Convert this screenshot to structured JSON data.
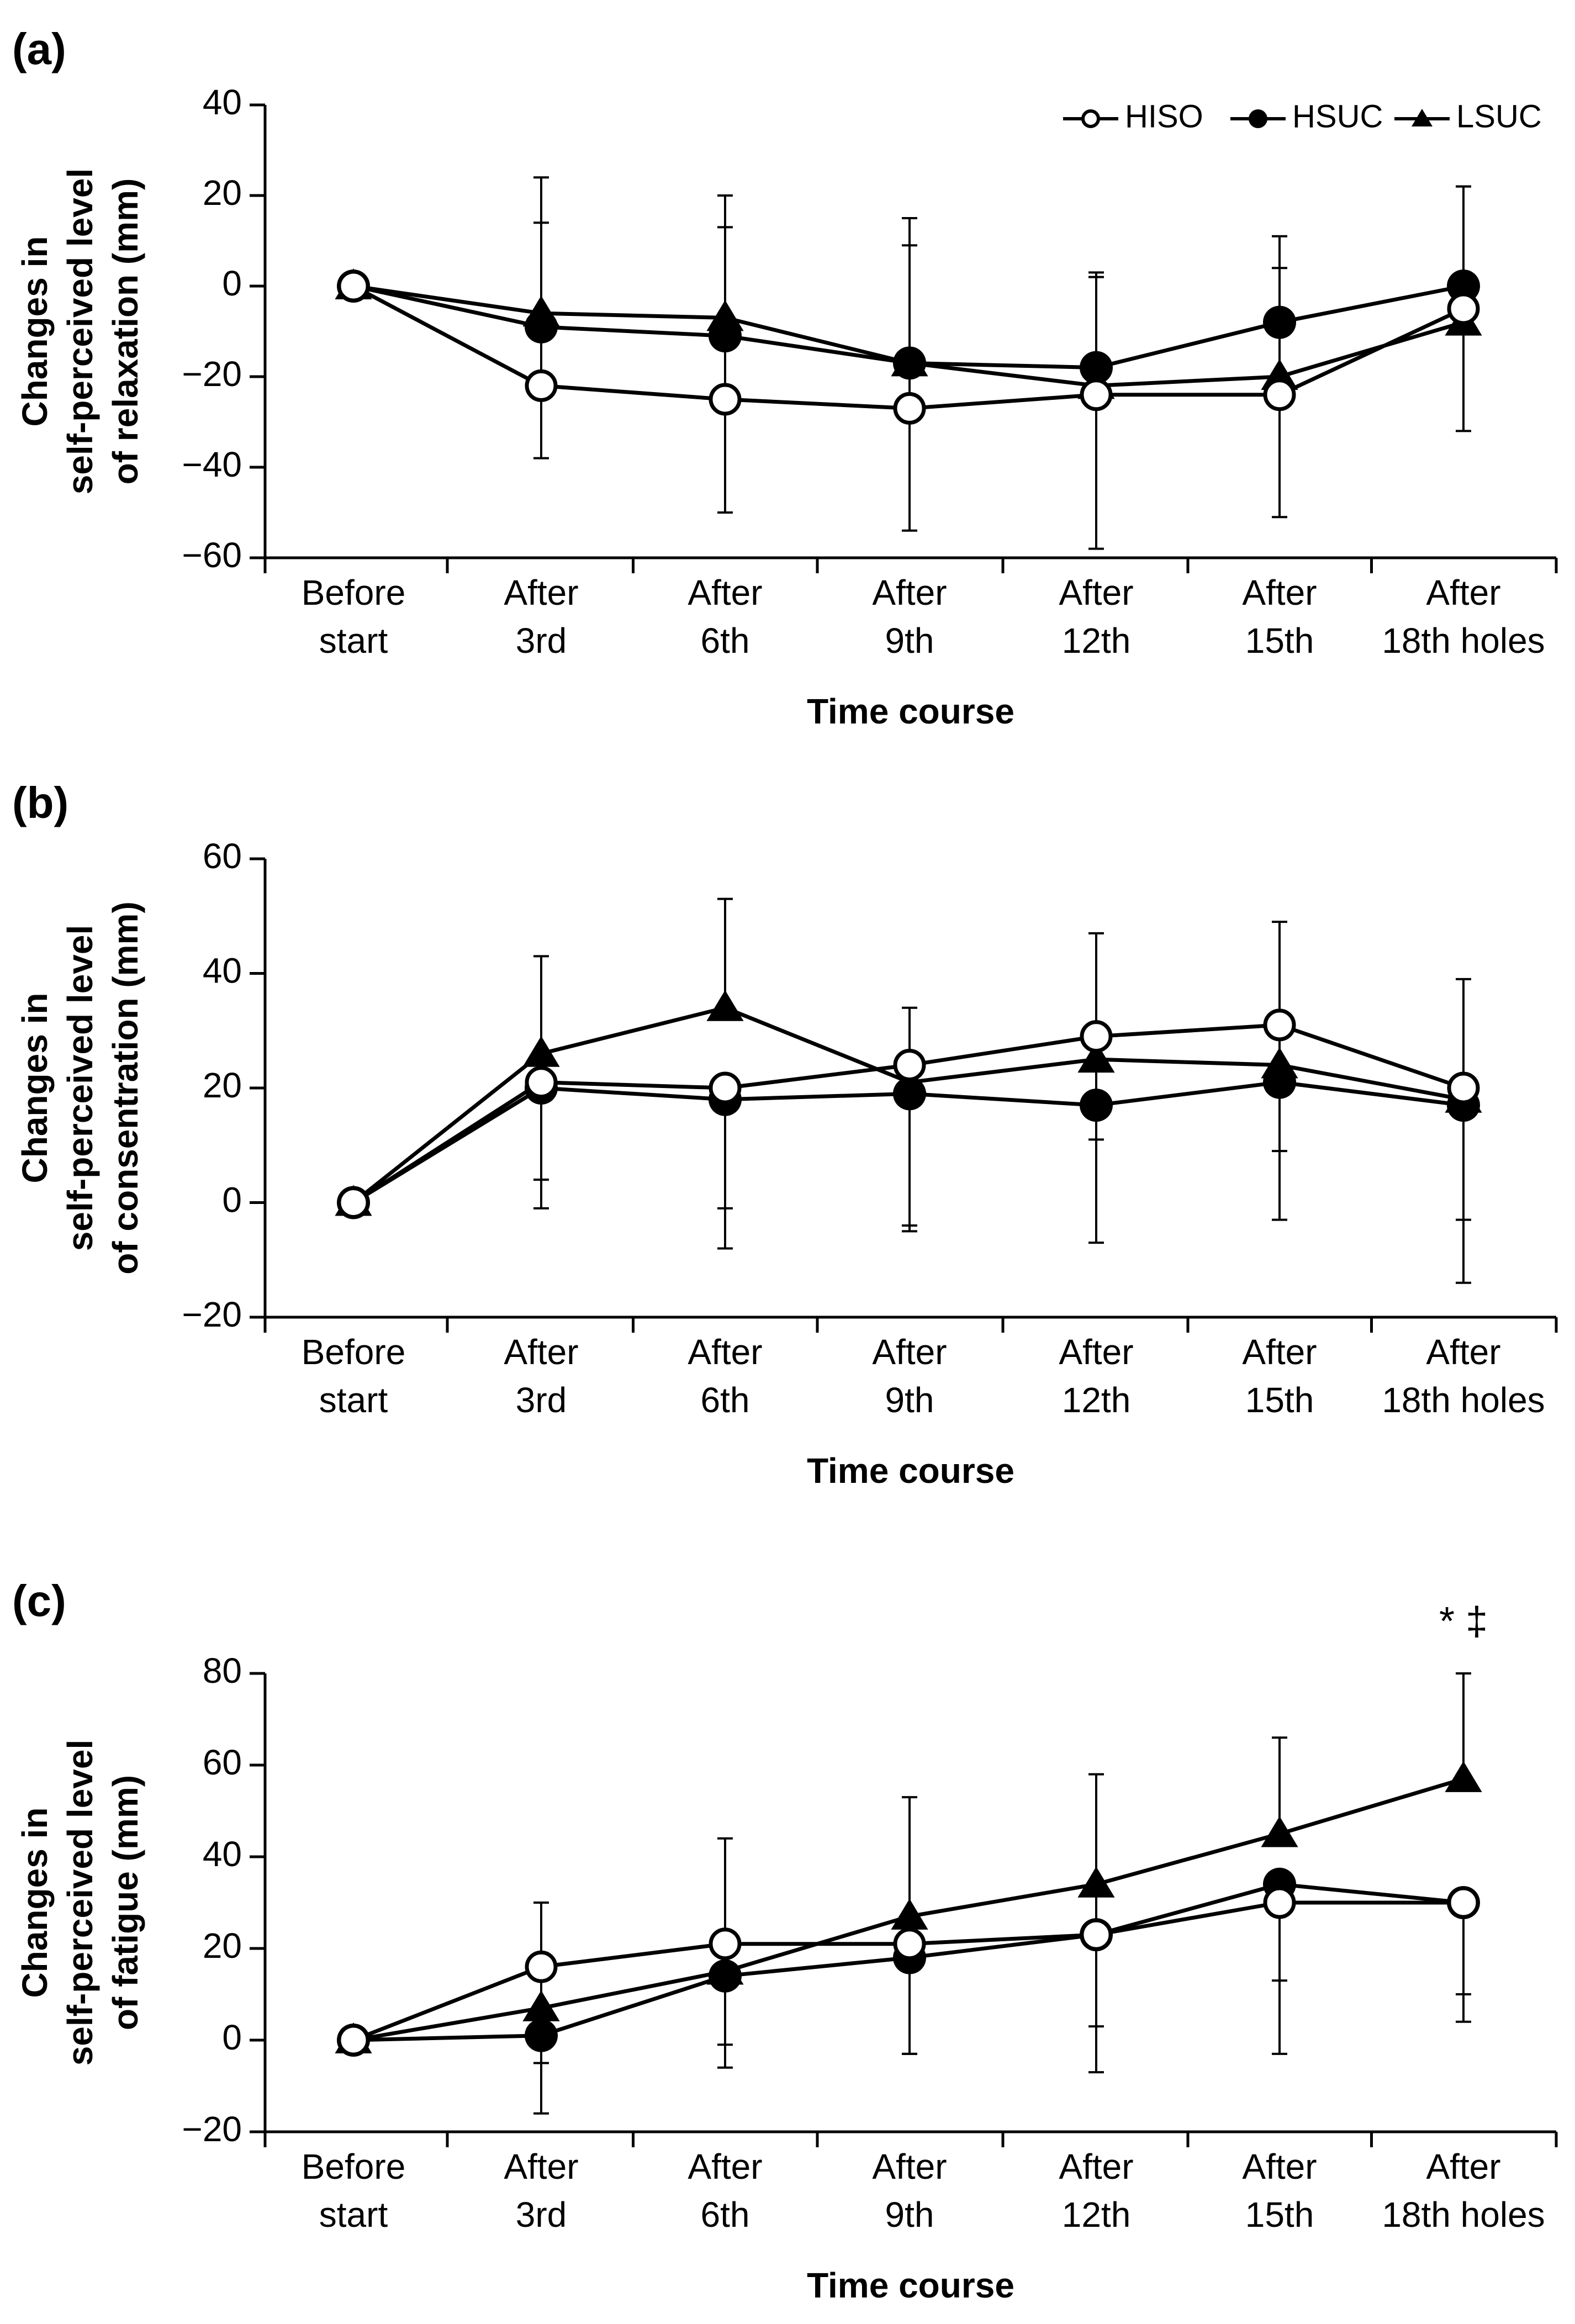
{
  "chart_data": [
    {
      "type": "line",
      "panel_label": "(a)",
      "ylabel_lines": [
        "Changes in",
        "self-perceived level",
        "of relaxation (mm)"
      ],
      "xlabel": "Time course",
      "categories": [
        [
          "Before",
          "start"
        ],
        [
          "After",
          "3rd"
        ],
        [
          "After",
          "6th"
        ],
        [
          "After",
          "9th"
        ],
        [
          "After",
          "12th"
        ],
        [
          "After",
          "15th"
        ],
        [
          "After",
          "18th holes"
        ]
      ],
      "ylim": [
        -60,
        40
      ],
      "yticks": [
        -60,
        -40,
        -20,
        0,
        20,
        40
      ],
      "ytick_labels": [
        "−60",
        "−40",
        "−20",
        "0",
        "20",
        "40"
      ],
      "legend": {
        "position": "top-right",
        "entries": [
          {
            "label": "HISO",
            "marker": "open-circle"
          },
          {
            "label": "HSUC",
            "marker": "filled-circle"
          },
          {
            "label": "LSUC",
            "marker": "filled-triangle"
          }
        ]
      },
      "series": [
        {
          "name": "HISO",
          "marker": "open-circle",
          "values": [
            0,
            -22,
            -25,
            -27,
            -24,
            -24,
            -5
          ],
          "err_low": [
            0,
            -38,
            -50,
            -54,
            -58,
            -51,
            -32
          ],
          "err_high": [
            0,
            14,
            13,
            9,
            3,
            4,
            22
          ]
        },
        {
          "name": "HSUC",
          "marker": "filled-circle",
          "values": [
            0,
            -9,
            -11,
            -17,
            -18,
            -8,
            0
          ],
          "err_low": [
            0,
            -9,
            -11,
            -17,
            -18,
            -8,
            0
          ],
          "err_high": [
            0,
            24,
            20,
            15,
            2,
            11,
            22
          ]
        },
        {
          "name": "LSUC",
          "marker": "filled-triangle",
          "values": [
            0,
            -6,
            -7,
            -17,
            -22,
            -20,
            -8
          ],
          "err_low": [
            0,
            -6,
            -7,
            -17,
            -22,
            -20,
            -8
          ],
          "err_high": [
            0,
            -6,
            -7,
            -17,
            -22,
            -20,
            -8
          ]
        }
      ],
      "annotations": []
    },
    {
      "type": "line",
      "panel_label": "(b)",
      "ylabel_lines": [
        "Changes in",
        "self-perceived level",
        "of consentration (mm)"
      ],
      "xlabel": "Time course",
      "categories": [
        [
          "Before",
          "start"
        ],
        [
          "After",
          "3rd"
        ],
        [
          "After",
          "6th"
        ],
        [
          "After",
          "9th"
        ],
        [
          "After",
          "12th"
        ],
        [
          "After",
          "15th"
        ],
        [
          "After",
          "18th holes"
        ]
      ],
      "ylim": [
        -20,
        60
      ],
      "yticks": [
        -20,
        0,
        20,
        40,
        60
      ],
      "ytick_labels": [
        "−20",
        "0",
        "20",
        "40",
        "60"
      ],
      "legend": null,
      "series": [
        {
          "name": "HISO",
          "marker": "open-circle",
          "values": [
            0,
            21,
            20,
            24,
            29,
            31,
            20
          ],
          "err_low": [
            0,
            4,
            -1,
            -4,
            11,
            9,
            -3
          ],
          "err_high": [
            0,
            21,
            20,
            34,
            47,
            49,
            39
          ]
        },
        {
          "name": "HSUC",
          "marker": "filled-circle",
          "values": [
            0,
            20,
            18,
            19,
            17,
            21,
            17
          ],
          "err_low": [
            0,
            -1,
            -8,
            -5,
            -7,
            -3,
            -14
          ],
          "err_high": [
            0,
            20,
            18,
            19,
            17,
            21,
            17
          ]
        },
        {
          "name": "LSUC",
          "marker": "filled-triangle",
          "values": [
            0,
            26,
            34,
            21,
            25,
            24,
            18
          ],
          "err_low": [
            0,
            26,
            34,
            21,
            25,
            24,
            18
          ],
          "err_high": [
            0,
            43,
            53,
            21,
            25,
            24,
            18
          ]
        }
      ],
      "annotations": []
    },
    {
      "type": "line",
      "panel_label": "(c)",
      "ylabel_lines": [
        "Changes in",
        "self-perceived level",
        "of fatigue (mm)"
      ],
      "xlabel": "Time course",
      "categories": [
        [
          "Before",
          "start"
        ],
        [
          "After",
          "3rd"
        ],
        [
          "After",
          "6th"
        ],
        [
          "After",
          "9th"
        ],
        [
          "After",
          "12th"
        ],
        [
          "After",
          "15th"
        ],
        [
          "After",
          "18th holes"
        ]
      ],
      "ylim": [
        -20,
        80
      ],
      "yticks": [
        -20,
        0,
        20,
        40,
        60,
        80
      ],
      "ytick_labels": [
        "−20",
        "0",
        "20",
        "40",
        "60",
        "80"
      ],
      "legend": null,
      "series": [
        {
          "name": "HISO",
          "marker": "open-circle",
          "values": [
            0,
            16,
            21,
            21,
            23,
            30,
            30
          ],
          "err_low": [
            0,
            -5,
            -1,
            -3,
            3,
            13,
            10
          ],
          "err_high": [
            0,
            30,
            44,
            53,
            58,
            30,
            30
          ]
        },
        {
          "name": "HSUC",
          "marker": "filled-circle",
          "values": [
            0,
            1,
            14,
            18,
            23,
            34,
            30
          ],
          "err_low": [
            0,
            -16,
            -6,
            -3,
            -7,
            -3,
            4
          ],
          "err_high": [
            0,
            1,
            14,
            18,
            23,
            34,
            30
          ]
        },
        {
          "name": "LSUC",
          "marker": "filled-triangle",
          "values": [
            0,
            7,
            15,
            27,
            34,
            45,
            57
          ],
          "err_low": [
            0,
            7,
            15,
            27,
            34,
            45,
            57
          ],
          "err_high": [
            0,
            7,
            15,
            27,
            34,
            66,
            80
          ]
        }
      ],
      "annotations": [
        {
          "text": "* ‡",
          "category_index": 6
        }
      ]
    }
  ]
}
